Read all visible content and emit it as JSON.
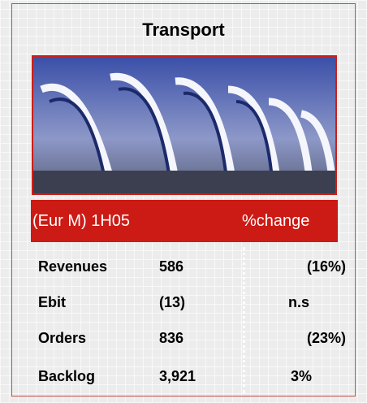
{
  "header": {
    "title": "Transport"
  },
  "band": {
    "left": "(Eur M) 1H05",
    "right": "%change"
  },
  "table": {
    "rows": [
      [
        "Revenues",
        "586",
        "(16%)"
      ],
      [
        "Ebit",
        "(13)",
        "n.s"
      ],
      [
        "Orders",
        "836",
        "(23%)"
      ],
      [
        "Backlog",
        "3,921",
        "3%"
      ]
    ]
  }
}
